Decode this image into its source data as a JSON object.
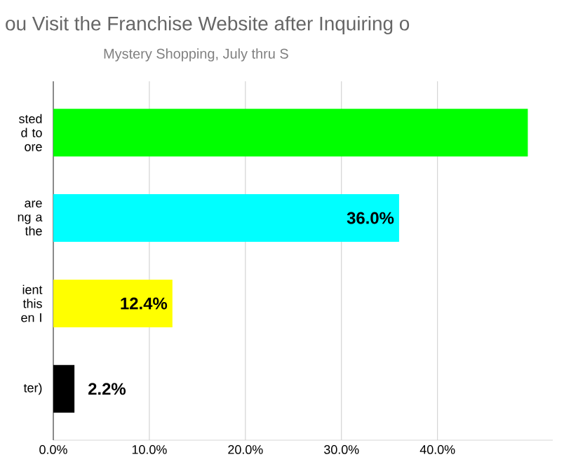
{
  "chart_data": {
    "type": "bar",
    "orientation": "horizontal",
    "title": "ou Visit the Franchise Website after Inquiring o",
    "subtitle": "Mystery Shopping, July thru S",
    "categories": [
      "sted d to ore",
      "are ng a the",
      "ient this en I",
      "ter)"
    ],
    "values": [
      49.4,
      36.0,
      12.4,
      2.2
    ],
    "colors": [
      "#00ff00",
      "#00ffff",
      "#ffff00",
      "#000000"
    ],
    "value_labels": [
      null,
      "36.0%",
      "12.4%",
      "2.2%"
    ],
    "xlim": [
      0,
      52
    ],
    "xticks": [
      {
        "value": 0,
        "label": "0.0%"
      },
      {
        "value": 10,
        "label": "10.0%"
      },
      {
        "value": 20,
        "label": "20.0%"
      },
      {
        "value": 30,
        "label": "30.0%"
      },
      {
        "value": 40,
        "label": "40.0%"
      }
    ],
    "grid": "x"
  }
}
